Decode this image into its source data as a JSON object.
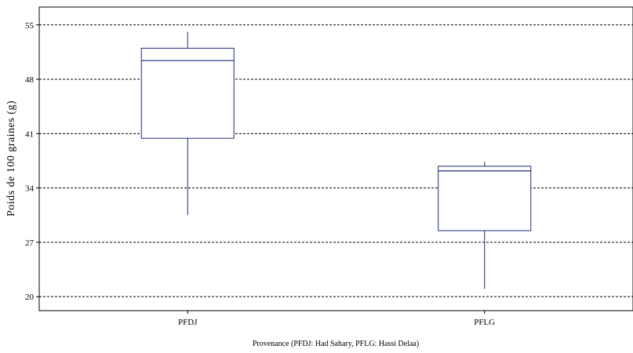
{
  "chart_data": {
    "type": "box",
    "xlabel": "Provenance (PFDJ: Had Sahary,  PFLG: Hassi Delaa)",
    "ylabel": "Poids de 100 graines (g)",
    "ylim": [
      18.2,
      57.3
    ],
    "yticks": [
      20,
      27,
      34,
      41,
      48,
      55
    ],
    "grid": "horizontal-dashed",
    "categories": [
      "PFDJ",
      "PFLG"
    ],
    "boxes": [
      {
        "category": "PFDJ",
        "min": 30.5,
        "q1": 40.4,
        "median": 50.4,
        "q3": 52.0,
        "max": 54.1
      },
      {
        "category": "PFLG",
        "min": 21.0,
        "q1": 28.5,
        "median": 36.2,
        "q3": 36.8,
        "max": 37.4
      }
    ],
    "colors": {
      "box": "#1f2a7a",
      "grid": "#000000",
      "axis": "#000000"
    }
  }
}
